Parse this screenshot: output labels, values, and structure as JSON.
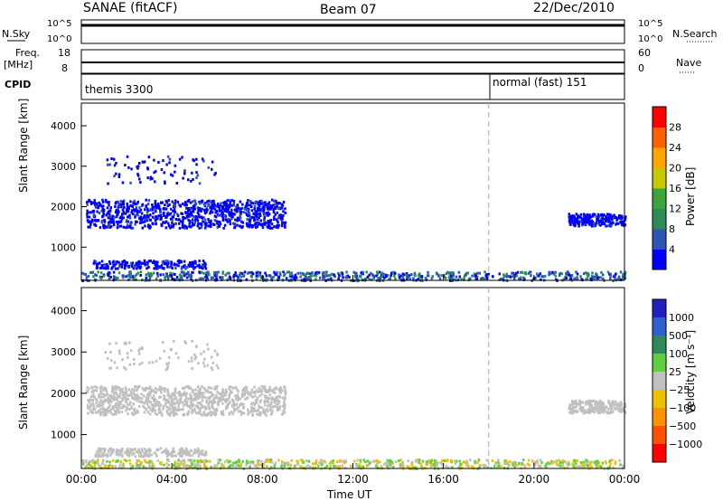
{
  "header": {
    "left": "SANAE (fitACF)",
    "center": "Beam 07",
    "right": "22/Dec/2010"
  },
  "summary": {
    "nsky_label": "N.Sky",
    "nsearch_label": "N.Search",
    "nsky_ticks": [
      "10^5",
      "10^0"
    ],
    "nsearch_ticks": [
      "10^5",
      "10^0"
    ],
    "freq_label_1": "Freq.",
    "freq_label_2": "[MHz]",
    "freq_ticks": [
      "18",
      "8"
    ],
    "nave_label": "Nave",
    "nave_ticks": [
      "60",
      "0"
    ],
    "cpid_label": "CPID",
    "cpid_1": "themis 3300",
    "cpid_2": "normal (fast) 151"
  },
  "colors": {
    "power_scale": [
      "#0000ff",
      "#2e55b5",
      "#2e8b57",
      "#3aa53a",
      "#c8c800",
      "#ffa500",
      "#ff6000",
      "#ff0000"
    ],
    "velocity_scale": [
      "#2020c0",
      "#3060d0",
      "#2e8b57",
      "#60d040",
      "#c0c0c0",
      "#f0c000",
      "#ff9000",
      "#ff5000",
      "#ff0000"
    ]
  },
  "chart_data": [
    {
      "type": "heatmap",
      "title": "Power",
      "xlabel": "Time UT",
      "ylabel": "Slant Range [km]",
      "x_ticks": [
        "00:00",
        "04:00",
        "08:00",
        "12:00",
        "16:00",
        "20:00",
        "00:00"
      ],
      "y_ticks": [
        "1000",
        "2000",
        "3000",
        "4000"
      ],
      "ylim": [
        180,
        4560
      ],
      "colorbar_label": "Power [dB]",
      "colorbar_ticks": [
        "4",
        "8",
        "12",
        "16",
        "20",
        "24",
        "28"
      ],
      "colorbar_range": [
        0,
        30
      ]
    },
    {
      "type": "heatmap",
      "title": "Velocity",
      "xlabel": "Time UT",
      "ylabel": "Slant Range [km]",
      "x_ticks": [
        "00:00",
        "04:00",
        "08:00",
        "12:00",
        "16:00",
        "20:00",
        "00:00"
      ],
      "y_ticks": [
        "1000",
        "2000",
        "3000",
        "4000"
      ],
      "ylim": [
        180,
        4560
      ],
      "colorbar_label": "Velocity [m s⁻¹]",
      "colorbar_ticks": [
        "1000",
        "500",
        "100",
        "25",
        "−25",
        "−100",
        "−500",
        "−1000"
      ]
    }
  ]
}
